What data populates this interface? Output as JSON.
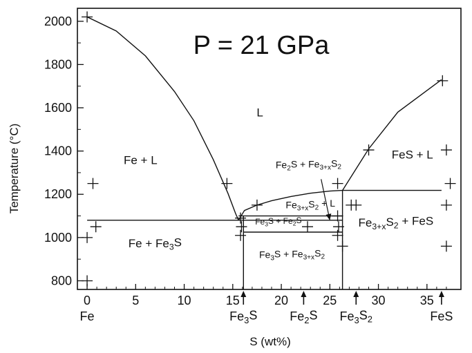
{
  "chart_data": {
    "type": "line",
    "title": "P = 21 GPa",
    "xlabel": "S (wt%)",
    "ylabel": "Temperature (°C)",
    "xlim": [
      -1,
      38.5
    ],
    "ylim": [
      760,
      2060
    ],
    "x_ticks": [
      0,
      5,
      10,
      15,
      20,
      25,
      30,
      35
    ],
    "x_tick_labels": [
      "0",
      "5",
      "10",
      "15",
      "20",
      "25",
      "30",
      "35"
    ],
    "y_ticks": [
      800,
      1000,
      1200,
      1400,
      1600,
      1800,
      2000
    ],
    "y_tick_labels": [
      "800",
      "1000",
      "1200",
      "1400",
      "1600",
      "1800",
      "2000"
    ],
    "grid": false,
    "compositions": [
      {
        "label": "Fe",
        "x": 0,
        "arrow": false
      },
      {
        "label": "Fe3S",
        "x": 16.1,
        "arrow": true
      },
      {
        "label": "Fe2S",
        "x": 22.3,
        "arrow": true
      },
      {
        "label": "Fe3S2",
        "x": 27.7,
        "arrow": true
      },
      {
        "label": "FeS",
        "x": 36.5,
        "arrow": true
      }
    ],
    "series": [
      {
        "type": "curve",
        "points": [
          [
            0,
            2020
          ],
          [
            3,
            1955
          ],
          [
            6,
            1840
          ],
          [
            9,
            1675
          ],
          [
            11,
            1540
          ],
          [
            13,
            1360
          ],
          [
            14.5,
            1205
          ],
          [
            15.3,
            1110
          ],
          [
            15.6,
            1080
          ]
        ]
      },
      {
        "type": "curve",
        "points": [
          [
            15.6,
            1080
          ],
          [
            16.2,
            1125
          ],
          [
            17.5,
            1150
          ],
          [
            19,
            1170
          ],
          [
            21,
            1190
          ],
          [
            23,
            1205
          ],
          [
            25,
            1215
          ],
          [
            26.3,
            1218
          ]
        ]
      },
      {
        "type": "curve",
        "points": [
          [
            26.3,
            1218
          ],
          [
            29,
            1410
          ],
          [
            32,
            1580
          ],
          [
            36.5,
            1730
          ]
        ]
      },
      {
        "type": "hline",
        "y": 1080,
        "x": [
          0,
          26.3
        ]
      },
      {
        "type": "hline",
        "y": 1100,
        "x": [
          15.6,
          26.3
        ]
      },
      {
        "type": "hline",
        "y": 1025,
        "x": [
          16.1,
          26.3
        ]
      },
      {
        "type": "hline",
        "y": 1218,
        "x": [
          26.3,
          36.5
        ]
      },
      {
        "type": "vline",
        "x": 16.1,
        "y": [
          760,
          1100
        ]
      },
      {
        "type": "vline",
        "x": 26.3,
        "y": [
          760,
          1218
        ]
      }
    ],
    "experiments": [
      {
        "x": 0,
        "y": 2020
      },
      {
        "x": 0,
        "y": 1000
      },
      {
        "x": 0,
        "y": 800
      },
      {
        "x": 0.6,
        "y": 1250
      },
      {
        "x": 0.9,
        "y": 1050
      },
      {
        "x": 14.4,
        "y": 1250
      },
      {
        "x": 15.8,
        "y": 1090
      },
      {
        "x": 15.9,
        "y": 1050
      },
      {
        "x": 15.8,
        "y": 1010
      },
      {
        "x": 17.5,
        "y": 1150
      },
      {
        "x": 22.7,
        "y": 1050
      },
      {
        "x": 25.8,
        "y": 1250
      },
      {
        "x": 25.8,
        "y": 1100
      },
      {
        "x": 25.9,
        "y": 1050
      },
      {
        "x": 25.8,
        "y": 1010
      },
      {
        "x": 26.3,
        "y": 960
      },
      {
        "x": 27.2,
        "y": 1150
      },
      {
        "x": 27.7,
        "y": 1150
      },
      {
        "x": 29,
        "y": 1405
      },
      {
        "x": 36.6,
        "y": 1725
      },
      {
        "x": 37,
        "y": 1405
      },
      {
        "x": 37.4,
        "y": 1250
      },
      {
        "x": 37,
        "y": 1150
      },
      {
        "x": 37,
        "y": 960
      }
    ],
    "region_labels": [
      {
        "text": "L",
        "x": 17.8,
        "y": 1560,
        "size": "large"
      },
      {
        "text": "Fe + L",
        "x": 5.5,
        "y": 1340,
        "size": "large"
      },
      {
        "text": "FeS + L",
        "x": 33.5,
        "y": 1365,
        "size": "large"
      },
      {
        "text": "Fe + Fe3S",
        "x": 7,
        "y": 955,
        "size": "large"
      },
      {
        "text": "Fe2S + Fe3+xS2",
        "x": 22.8,
        "y": 1320,
        "size": "small"
      },
      {
        "text": "Fe3+xS2 + L",
        "x": 23,
        "y": 1135,
        "size": "small"
      },
      {
        "text": "Fe3S + Fe2S",
        "x": 19.7,
        "y": 1060,
        "size": "xsmall"
      },
      {
        "text": "Fe3+xS2 + FeS",
        "x": 31.8,
        "y": 1050,
        "size": "large"
      },
      {
        "text": "Fe3S + Fe3+xS2",
        "x": 21.1,
        "y": 905,
        "size": "small"
      }
    ],
    "annotation_arrow": {
      "from": [
        24.1,
        1270
      ],
      "to": [
        25,
        1080
      ]
    }
  }
}
